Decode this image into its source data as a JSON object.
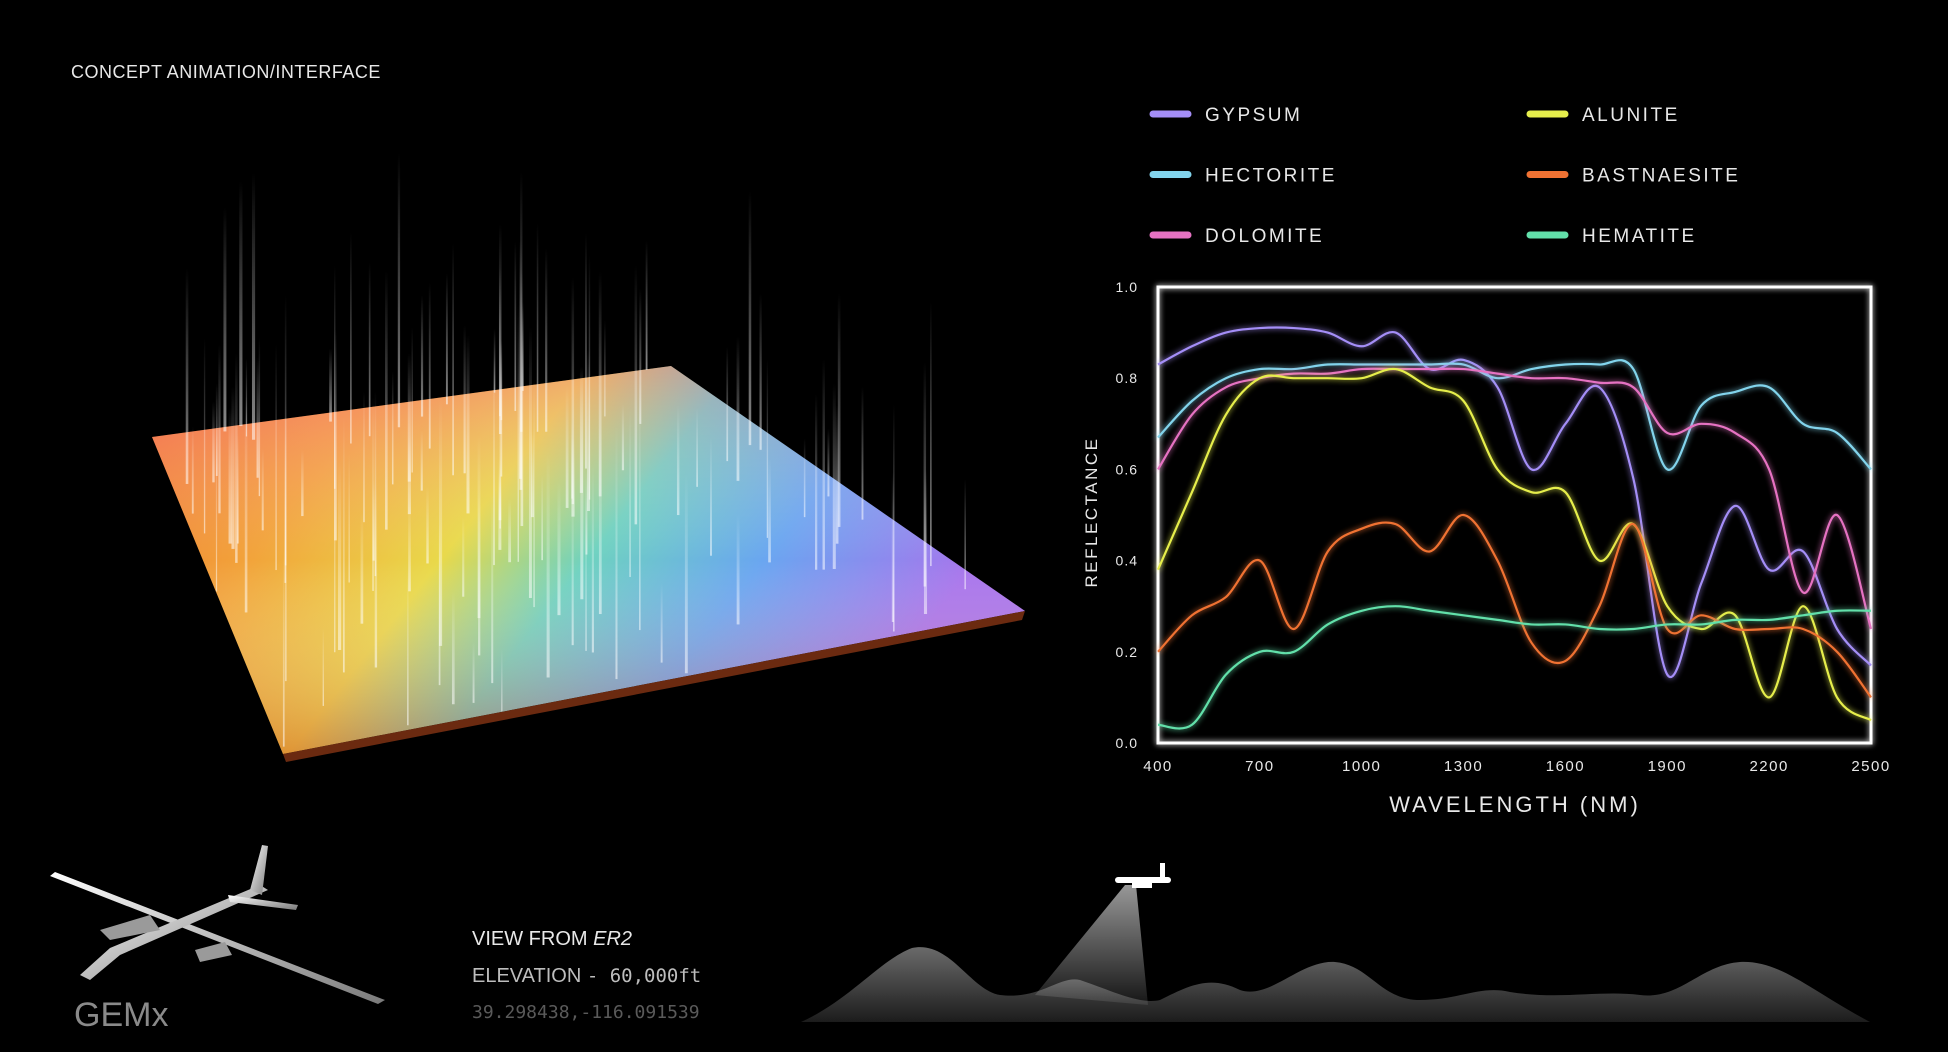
{
  "header": {
    "caption": "CONCEPT ANIMATION/INTERFACE"
  },
  "chart_data": {
    "type": "line",
    "x_label": "WAVELENGTH (NM)",
    "y_label": "REFLECTANCE",
    "x": [
      400,
      500,
      600,
      700,
      800,
      900,
      1000,
      1100,
      1200,
      1300,
      1400,
      1500,
      1600,
      1700,
      1800,
      1900,
      2000,
      2100,
      2200,
      2300,
      2400,
      2500
    ],
    "series": [
      {
        "name": "GYPSUM",
        "color": "#a48ef7",
        "values": [
          0.83,
          0.87,
          0.9,
          0.91,
          0.91,
          0.9,
          0.87,
          0.9,
          0.82,
          0.84,
          0.78,
          0.6,
          0.7,
          0.78,
          0.58,
          0.15,
          0.35,
          0.52,
          0.38,
          0.42,
          0.25,
          0.17
        ]
      },
      {
        "name": "HECTORITE",
        "color": "#82d4ec",
        "values": [
          0.67,
          0.75,
          0.8,
          0.82,
          0.82,
          0.83,
          0.83,
          0.83,
          0.83,
          0.83,
          0.8,
          0.82,
          0.83,
          0.83,
          0.82,
          0.6,
          0.74,
          0.77,
          0.78,
          0.7,
          0.68,
          0.6
        ]
      },
      {
        "name": "DOLOMITE",
        "color": "#e672c2",
        "values": [
          0.6,
          0.72,
          0.78,
          0.8,
          0.81,
          0.81,
          0.82,
          0.82,
          0.82,
          0.82,
          0.81,
          0.8,
          0.8,
          0.79,
          0.78,
          0.68,
          0.7,
          0.68,
          0.6,
          0.33,
          0.5,
          0.25
        ]
      },
      {
        "name": "ALUNITE",
        "color": "#e6ee4c",
        "values": [
          0.38,
          0.55,
          0.72,
          0.8,
          0.8,
          0.8,
          0.8,
          0.82,
          0.78,
          0.75,
          0.6,
          0.55,
          0.55,
          0.4,
          0.48,
          0.3,
          0.25,
          0.28,
          0.1,
          0.3,
          0.1,
          0.05
        ]
      },
      {
        "name": "BASTNAESITE",
        "color": "#f07233",
        "values": [
          0.2,
          0.28,
          0.32,
          0.4,
          0.25,
          0.42,
          0.47,
          0.48,
          0.42,
          0.5,
          0.4,
          0.22,
          0.18,
          0.3,
          0.48,
          0.25,
          0.28,
          0.25,
          0.25,
          0.25,
          0.2,
          0.1
        ]
      },
      {
        "name": "HEMATITE",
        "color": "#62e0aa",
        "values": [
          0.04,
          0.04,
          0.15,
          0.2,
          0.2,
          0.26,
          0.29,
          0.3,
          0.29,
          0.28,
          0.27,
          0.26,
          0.26,
          0.25,
          0.25,
          0.26,
          0.26,
          0.27,
          0.27,
          0.28,
          0.29,
          0.29
        ]
      }
    ],
    "xlim": [
      400,
      2500
    ],
    "xticks": [
      400,
      700,
      1000,
      1300,
      1600,
      1900,
      2200,
      2500
    ],
    "ylim": [
      0,
      1
    ],
    "yticks": [
      {
        "value": 0,
        "label": "0.0"
      },
      0.2,
      0.4,
      0.6,
      0.8,
      {
        "value": 1,
        "label": "1.0"
      }
    ],
    "grid": false
  },
  "flight": {
    "view_label": "VIEW FROM",
    "aircraft": "ER2",
    "elevation_label": "ELEVATION",
    "elevation_value": "- 60,000ft",
    "coordinates": "39.298438,-116.091539"
  },
  "logo": "GEMx"
}
